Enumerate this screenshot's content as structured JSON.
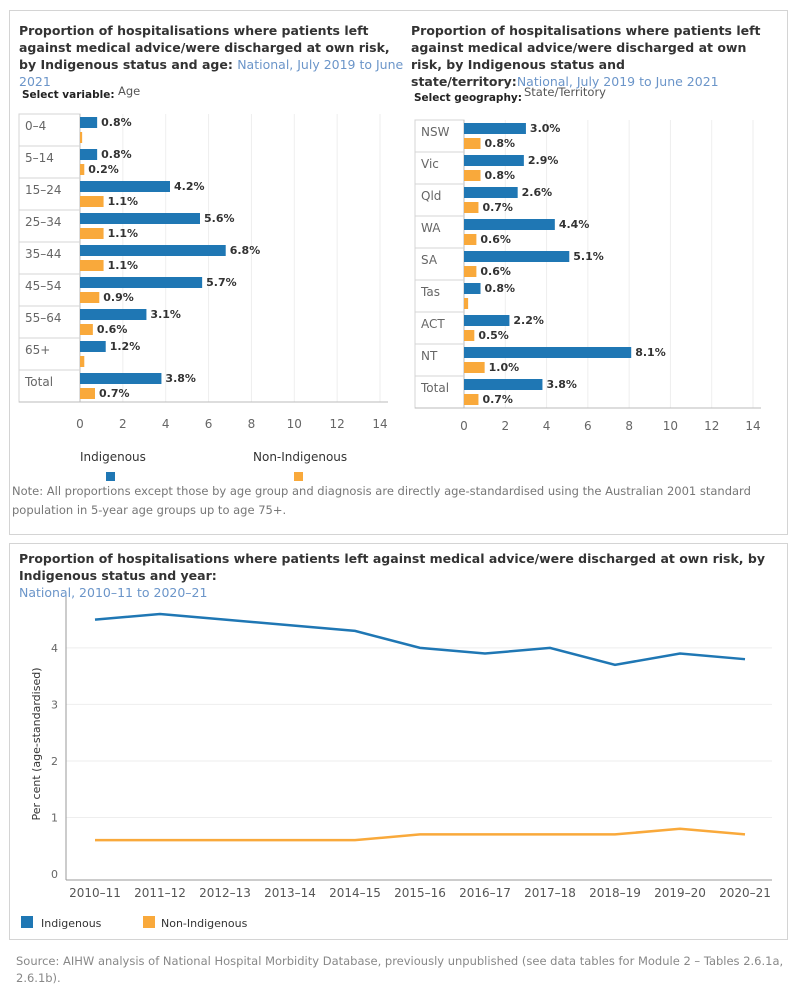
{
  "colors": {
    "indigenous": "#1f77b4",
    "non_indigenous": "#f9a93b",
    "title_sub": "#6b95c9"
  },
  "age_panel": {
    "title": "Proportion of hospitalisations where patients left against medical advice/were discharged at own risk, by Indigenous status and age:",
    "subtitle": "National, July 2019 to June 2021",
    "select_label": "Select variable:",
    "select_value": "Age"
  },
  "state_panel": {
    "title": "Proportion of hospitalisations where patients left against medical advice/were discharged at own risk, by Indigenous status and state/territory:",
    "subtitle": "National, July 2019 to June 2021",
    "select_label": "Select geography:",
    "select_value": "State/Territory"
  },
  "legend_top": {
    "indigenous": "Indigenous",
    "non_indigenous": "Non-Indigenous"
  },
  "note": "Note: All proportions except those by age group and diagnosis are directly age-standardised using the Australian 2001 standard population in 5-year age groups up to age 75+.",
  "trend_panel": {
    "title": "Proportion of hospitalisations where patients left against medical advice/were discharged at own risk, by Indigenous status and year:",
    "subtitle": "National, 2010–11 to 2020–21"
  },
  "legend_bottom": {
    "indigenous": "Indigenous",
    "non_indigenous": "Non-Indigenous"
  },
  "source": "Source: AIHW analysis of National Hospital Morbidity Database, previously unpublished (see data tables for Module 2 – Tables 2.6.1a, 2.6.1b).",
  "chart_data": [
    {
      "type": "bar",
      "orientation": "horizontal",
      "categories": [
        "0–4",
        "5–14",
        "15–24",
        "25–34",
        "35–44",
        "45–54",
        "55–64",
        "65+",
        "Total"
      ],
      "series": [
        {
          "name": "Indigenous",
          "values": [
            0.8,
            0.8,
            4.2,
            5.6,
            6.8,
            5.7,
            3.1,
            1.2,
            3.8
          ],
          "labels": [
            "0.8%",
            "0.8%",
            "4.2%",
            "5.6%",
            "6.8%",
            "5.7%",
            "3.1%",
            "1.2%",
            "3.8%"
          ]
        },
        {
          "name": "Non-Indigenous",
          "values": [
            0.1,
            0.2,
            1.1,
            1.1,
            1.1,
            0.9,
            0.6,
            0.2,
            0.7
          ],
          "labels": [
            "",
            "0.2%",
            "1.1%",
            "1.1%",
            "1.1%",
            "0.9%",
            "0.6%",
            "",
            "0.7%"
          ]
        }
      ],
      "xlim": [
        0,
        14
      ],
      "xticks": [
        "0",
        "2",
        "4",
        "6",
        "8",
        "10",
        "12",
        "14"
      ],
      "grid": true
    },
    {
      "type": "bar",
      "orientation": "horizontal",
      "categories": [
        "NSW",
        "Vic",
        "Qld",
        "WA",
        "SA",
        "Tas",
        "ACT",
        "NT",
        "Total"
      ],
      "series": [
        {
          "name": "Indigenous",
          "values": [
            3.0,
            2.9,
            2.6,
            4.4,
            5.1,
            0.8,
            2.2,
            8.1,
            3.8
          ],
          "labels": [
            "3.0%",
            "2.9%",
            "2.6%",
            "4.4%",
            "5.1%",
            "0.8%",
            "2.2%",
            "8.1%",
            "3.8%"
          ]
        },
        {
          "name": "Non-Indigenous",
          "values": [
            0.8,
            0.8,
            0.7,
            0.6,
            0.6,
            0.2,
            0.5,
            1.0,
            0.7
          ],
          "labels": [
            "0.8%",
            "0.8%",
            "0.7%",
            "0.6%",
            "0.6%",
            "",
            "0.5%",
            "1.0%",
            "0.7%"
          ]
        }
      ],
      "xlim": [
        0,
        14
      ],
      "xticks": [
        "0",
        "2",
        "4",
        "6",
        "8",
        "10",
        "12",
        "14"
      ],
      "grid": true
    },
    {
      "type": "line",
      "x": [
        "2010–11",
        "2011–12",
        "2012–13",
        "2013–14",
        "2014–15",
        "2015–16",
        "2016–17",
        "2017–18",
        "2018–19",
        "2019–20",
        "2020–21"
      ],
      "series": [
        {
          "name": "Indigenous",
          "values": [
            4.5,
            4.6,
            4.5,
            4.4,
            4.3,
            4.0,
            3.9,
            4.0,
            3.7,
            3.9,
            3.8
          ]
        },
        {
          "name": "Non-Indigenous",
          "values": [
            0.6,
            0.6,
            0.6,
            0.6,
            0.6,
            0.7,
            0.7,
            0.7,
            0.7,
            0.8,
            0.7
          ]
        }
      ],
      "ylabel": "Per cent (age-standardised)",
      "ylim": [
        0,
        4.9
      ],
      "yticks": [
        "0",
        "1",
        "2",
        "3",
        "4"
      ],
      "grid": true
    }
  ]
}
